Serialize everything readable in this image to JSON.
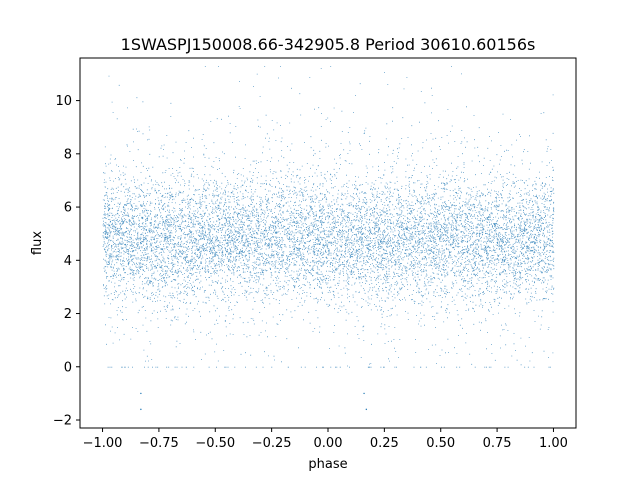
{
  "chart_data": {
    "type": "scatter",
    "title": "1SWASPJ150008.66-342905.8 Period 30610.60156s",
    "xlabel": "phase",
    "ylabel": "flux",
    "xlim": [
      -1.1,
      1.1
    ],
    "ylim": [
      -2.3,
      11.6
    ],
    "x_ticks": [
      -1.0,
      -0.75,
      -0.5,
      -0.25,
      0.0,
      0.25,
      0.5,
      0.75,
      1.0
    ],
    "x_tick_labels": [
      "−1.00",
      "−0.75",
      "−0.50",
      "−0.25",
      "0.00",
      "0.25",
      "0.50",
      "0.75",
      "1.00"
    ],
    "y_ticks": [
      -2,
      0,
      2,
      4,
      6,
      8,
      10
    ],
    "y_tick_labels": [
      "−2",
      "0",
      "2",
      "4",
      "6",
      "8",
      "10"
    ],
    "grid": false,
    "legend": "none",
    "marker_color": "#1f77b4",
    "series": [
      {
        "x_range": [
          -1.0,
          1.0
        ],
        "core_y_range": [
          3.0,
          6.5
        ],
        "y_range": [
          0.0,
          11.3
        ],
        "center_y": 4.8,
        "outliers": [
          {
            "x": -0.83,
            "y": -1.0
          },
          {
            "x": -0.83,
            "y": -1.6
          },
          {
            "x": 0.16,
            "y": -1.0
          },
          {
            "x": 0.17,
            "y": -1.6
          }
        ]
      }
    ]
  }
}
